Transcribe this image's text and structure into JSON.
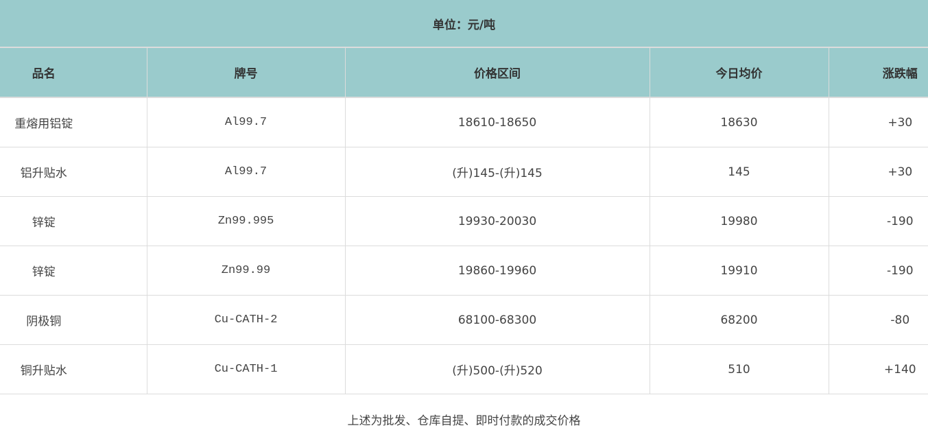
{
  "title": "单位：元/吨",
  "headers": [
    "品名",
    "牌号",
    "价格区间",
    "今日均价",
    "涨跌幅"
  ],
  "rows": [
    {
      "name": "重熔用铝锭",
      "brand": "Al99.7",
      "range": "18610-18650",
      "avg": "18630",
      "change": "+30"
    },
    {
      "name": "铝升贴水",
      "brand": "Al99.7",
      "range": "(升)145-(升)145",
      "avg": "145",
      "change": "+30"
    },
    {
      "name": "锌锭",
      "brand": "Zn99.995",
      "range": "19930-20030",
      "avg": "19980",
      "change": "-190"
    },
    {
      "name": "锌锭",
      "brand": "Zn99.99",
      "range": "19860-19960",
      "avg": "19910",
      "change": "-190"
    },
    {
      "name": "阴极铜",
      "brand": "Cu-CATH-2",
      "range": "68100-68300",
      "avg": "68200",
      "change": "-80"
    },
    {
      "name": "铜升贴水",
      "brand": "Cu-CATH-1",
      "range": "(升)500-(升)520",
      "avg": "510",
      "change": "+140"
    }
  ],
  "footnote": "上述为批发、仓库自提、即时付款的成交价格",
  "colors": {
    "header_bg": "#9acbcc",
    "border": "#dcdcdc"
  }
}
